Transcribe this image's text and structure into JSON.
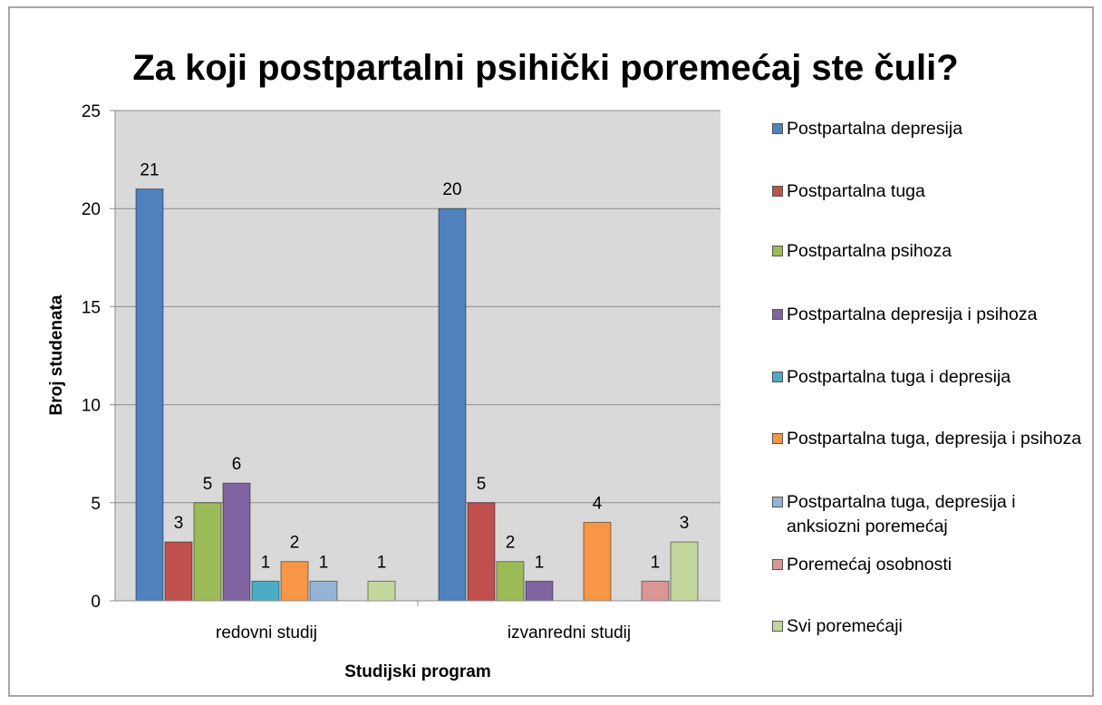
{
  "chart_data": {
    "type": "bar",
    "title": "Za koji postpartalni psihički poremećaj ste čuli?",
    "x_label": "Studijski program",
    "y_label": "Broj studenata",
    "categories": [
      "redovni studij",
      "izvanredni studij"
    ],
    "series": [
      {
        "name": "Postpartalna depresija",
        "color": "#4F81BD",
        "values": [
          21,
          20
        ]
      },
      {
        "name": "Postpartalna tuga",
        "color": "#C0504D",
        "values": [
          3,
          5
        ]
      },
      {
        "name": "Postpartalna psihoza",
        "color": "#9BBB59",
        "values": [
          5,
          2
        ]
      },
      {
        "name": "Postpartalna depresija i psihoza",
        "color": "#8064A2",
        "values": [
          6,
          1
        ]
      },
      {
        "name": "Postpartalna tuga i depresija",
        "color": "#4BACC6",
        "values": [
          1,
          null
        ]
      },
      {
        "name": "Postpartalna tuga, depresija i psihoza",
        "color": "#F79646",
        "values": [
          2,
          4
        ]
      },
      {
        "name": "Postpartalna tuga, depresija i anksiozni poremećaj",
        "color": "#95B3D7",
        "values": [
          1,
          null
        ]
      },
      {
        "name": "Poremećaj osobnosti",
        "color": "#DA9694",
        "values": [
          null,
          1
        ]
      },
      {
        "name": "Svi poremećaji",
        "color": "#C3D69B",
        "values": [
          1,
          3
        ]
      }
    ],
    "ylim": [
      0,
      25
    ],
    "yticks": [
      0,
      5,
      10,
      15,
      20,
      25
    ],
    "grid": true,
    "legend": "right"
  }
}
